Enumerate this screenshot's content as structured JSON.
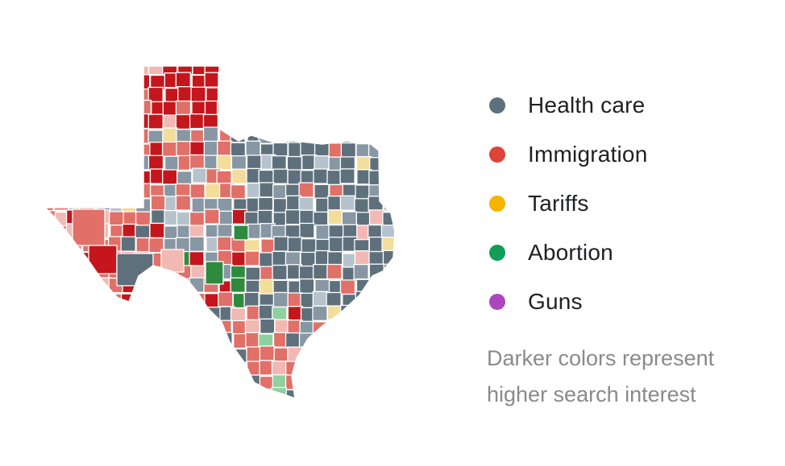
{
  "legend": {
    "items": [
      {
        "label": "Health care",
        "color": "#5f707d"
      },
      {
        "label": "Immigration",
        "color": "#db4437"
      },
      {
        "label": "Tariffs",
        "color": "#f4b400"
      },
      {
        "label": "Abortion",
        "color": "#0f9d58"
      },
      {
        "label": "Guns",
        "color": "#ab47bc"
      }
    ],
    "note_line1": "Darker colors represent",
    "note_line2": "higher search interest"
  },
  "map": {
    "region": "Texas counties",
    "palette": {
      "health_dark": "#5f707d",
      "health_mid": "#8797a3",
      "health_light": "#b6c3cc",
      "immig_dark": "#c4161c",
      "immig_mid": "#e07068",
      "immig_light": "#f2b8b3",
      "tariff_light": "#f3dd9b",
      "abort_dark": "#2e8b3e",
      "abort_light": "#8fd19e"
    }
  }
}
